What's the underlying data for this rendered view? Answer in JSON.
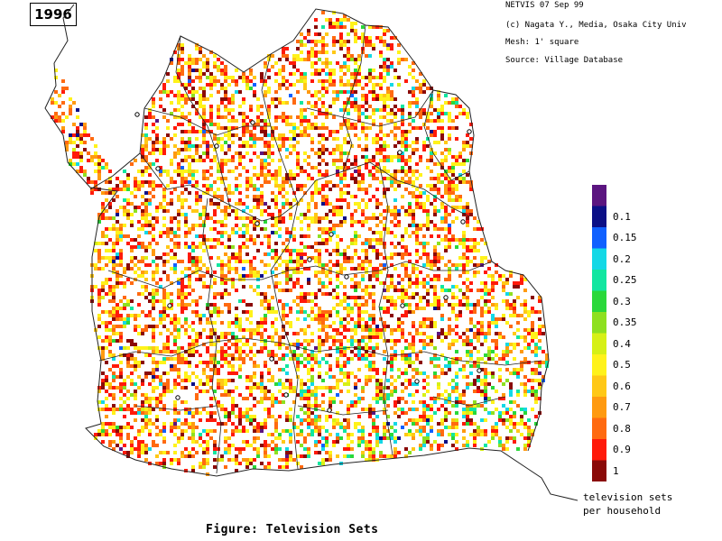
{
  "year": "1996",
  "credits": [
    "NETVIS 07 Sep 99",
    "(c) Nagata Y., Media, Osaka City Univ",
    "Mesh:  1' square",
    "Source:  Village Database"
  ],
  "legend": {
    "items": [
      {
        "label": "",
        "color": "#5b1580"
      },
      {
        "label": "0.1",
        "color": "#0b0f86"
      },
      {
        "label": "0.15",
        "color": "#1060ff"
      },
      {
        "label": "0.2",
        "color": "#13d8e6"
      },
      {
        "label": "0.25",
        "color": "#12e6a0"
      },
      {
        "label": "0.3",
        "color": "#2ad83a"
      },
      {
        "label": "0.35",
        "color": "#8ee020"
      },
      {
        "label": "0.4",
        "color": "#d6f016"
      },
      {
        "label": "0.5",
        "color": "#fff21a"
      },
      {
        "label": "0.6",
        "color": "#ffc816"
      },
      {
        "label": "0.7",
        "color": "#ff9a10"
      },
      {
        "label": "0.8",
        "color": "#ff6a10"
      },
      {
        "label": "0.9",
        "color": "#ff1a0a"
      },
      {
        "label": "1",
        "color": "#8a0a08"
      }
    ],
    "unit_line1": "television sets",
    "unit_line2": "per household"
  },
  "caption": "Figure: Television Sets"
}
